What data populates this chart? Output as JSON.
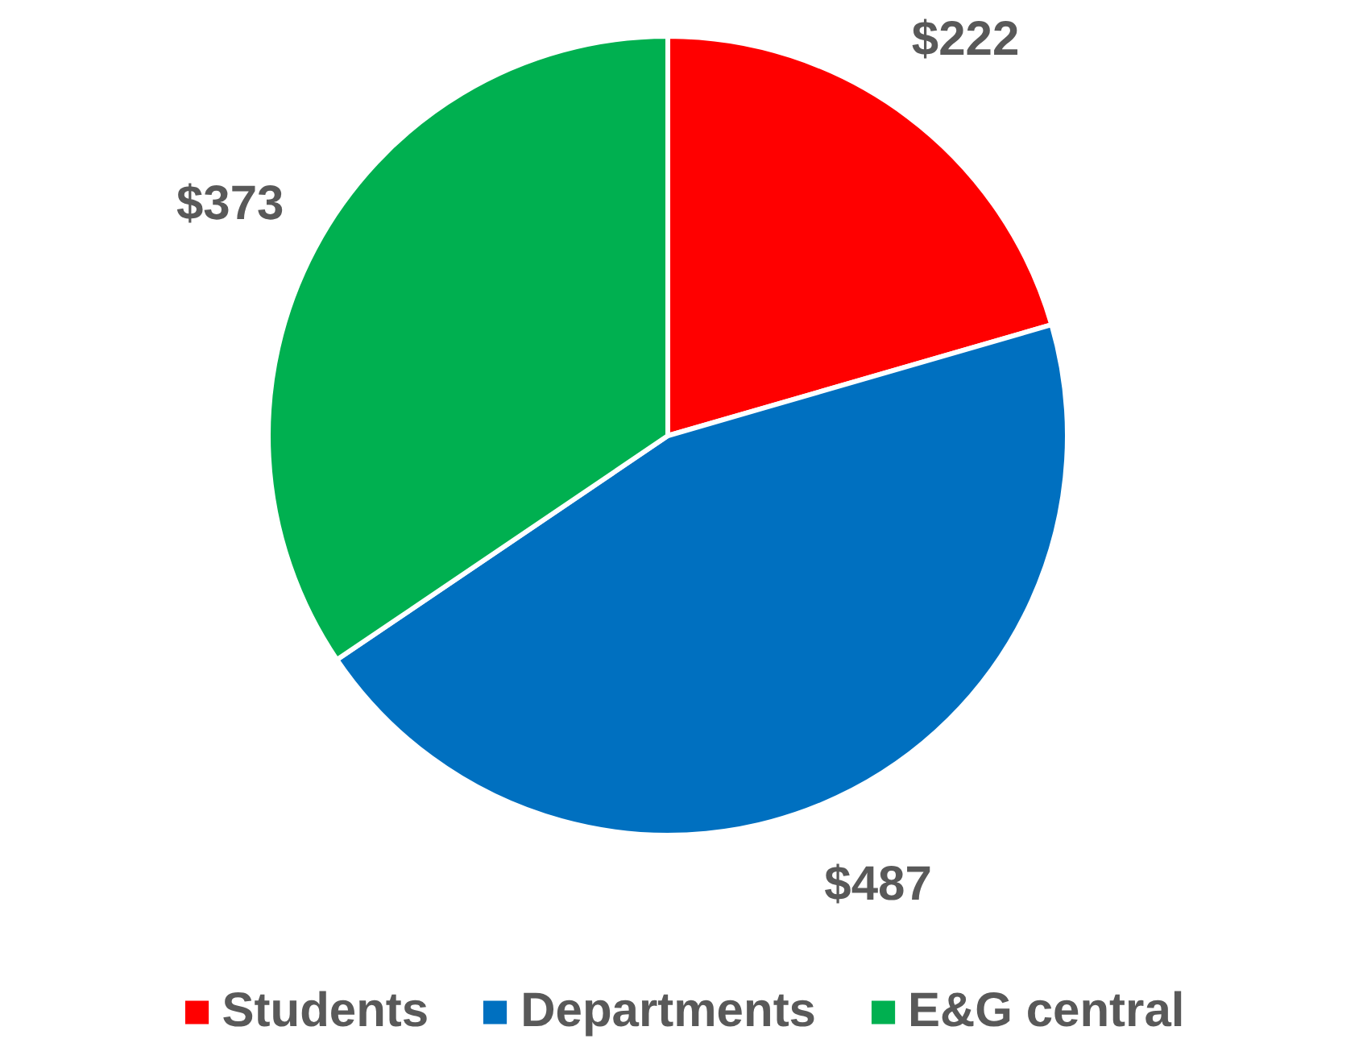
{
  "chart_data": {
    "type": "pie",
    "categories": [
      "Students",
      "Departments",
      "E&G central"
    ],
    "values": [
      222,
      487,
      373
    ],
    "colors": [
      "#ff0000",
      "#0070c0",
      "#00b050"
    ],
    "value_labels": [
      "$222",
      "$487",
      "$373"
    ],
    "legend": "bottom"
  }
}
